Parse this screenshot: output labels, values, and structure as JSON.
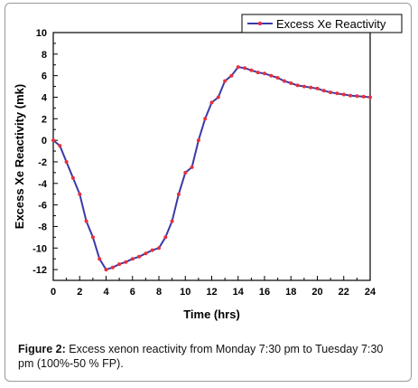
{
  "chart_data": {
    "type": "line",
    "xlabel": "Time (hrs)",
    "ylabel": "Excess Xe Reactivity (mk)",
    "xlim": [
      0,
      24
    ],
    "ylim": [
      -13,
      10
    ],
    "xticks": [
      "0",
      "2",
      "4",
      "6",
      "8",
      "10",
      "12",
      "14",
      "16",
      "18",
      "20",
      "22",
      "24"
    ],
    "yticks": [
      "10",
      "8",
      "6",
      "4",
      "2",
      "0",
      "-2",
      "-4",
      "-6",
      "-8",
      "-10",
      "-12"
    ],
    "legend_position": "top-right",
    "series": [
      {
        "name": "Excess Xe Reactivity",
        "color": "#3a3aa8",
        "marker_color": "#e8303a",
        "x": [
          0,
          0.5,
          1,
          1.5,
          2,
          2.5,
          3,
          3.5,
          4,
          4.5,
          5,
          5.5,
          6,
          6.5,
          7,
          7.5,
          8,
          8.5,
          9,
          9.5,
          10,
          10.5,
          11,
          11.5,
          12,
          12.5,
          13,
          13.5,
          14,
          14.5,
          15,
          15.5,
          16,
          16.5,
          17,
          17.5,
          18,
          18.5,
          19,
          19.5,
          20,
          20.5,
          21,
          21.5,
          22,
          22.5,
          23,
          23.5,
          24
        ],
        "y": [
          0,
          -0.5,
          -2,
          -3.5,
          -5,
          -7.5,
          -9,
          -11,
          -12,
          -11.8,
          -11.5,
          -11.3,
          -11,
          -10.8,
          -10.5,
          -10.2,
          -10,
          -9,
          -7.5,
          -5,
          -3,
          -2.5,
          0,
          2,
          3.5,
          4,
          5.5,
          6,
          6.8,
          6.7,
          6.5,
          6.3,
          6.2,
          6.0,
          5.8,
          5.5,
          5.3,
          5.1,
          5.0,
          4.9,
          4.8,
          4.6,
          4.45,
          4.35,
          4.25,
          4.15,
          4.1,
          4.05,
          4.0
        ]
      }
    ]
  },
  "caption": {
    "label": "Figure 2:",
    "text": " Excess xenon reactivity from Monday 7:30 pm to Tuesday 7:30 pm (100%-50 % FP)."
  }
}
